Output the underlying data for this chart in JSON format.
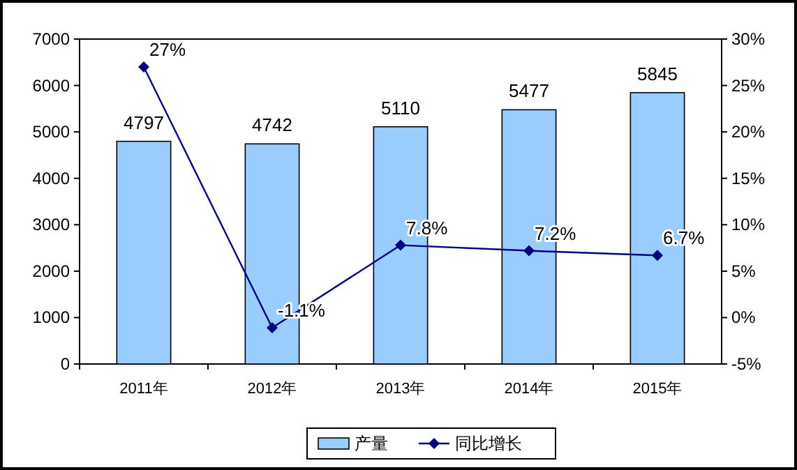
{
  "chart_data": {
    "type": "bar",
    "categories": [
      "2011年",
      "2012年",
      "2013年",
      "2014年",
      "2015年"
    ],
    "series": [
      {
        "name": "产量",
        "color": "#99ccff",
        "values": [
          4797,
          4742,
          5110,
          5477,
          5845
        ],
        "value_labels": [
          "4797",
          "4742",
          "5110",
          "5477",
          "5845"
        ]
      },
      {
        "name": "同比增长",
        "type": "line",
        "axis": "y2",
        "color": "#000080",
        "values": [
          27,
          -1.1,
          7.8,
          7.2,
          6.7
        ],
        "value_labels": [
          "27%",
          "-1.1%",
          "7.8%",
          "7.2%",
          "6.7%"
        ]
      }
    ],
    "ylim": [
      0,
      7000
    ],
    "yticks": [
      0,
      1000,
      2000,
      3000,
      4000,
      5000,
      6000,
      7000
    ],
    "y2lim": [
      -5,
      30
    ],
    "y2ticks": [
      {
        "value": -5,
        "label": "-5%"
      },
      {
        "value": 0,
        "label": "0%"
      },
      {
        "value": 5,
        "label": "5%"
      },
      {
        "value": 10,
        "label": "10%"
      },
      {
        "value": 15,
        "label": "15%"
      },
      {
        "value": 20,
        "label": "20%"
      },
      {
        "value": 25,
        "label": "25%"
      },
      {
        "value": 30,
        "label": "30%"
      }
    ],
    "legend": "bottom",
    "marker": "diamond",
    "line_style": "solid"
  }
}
